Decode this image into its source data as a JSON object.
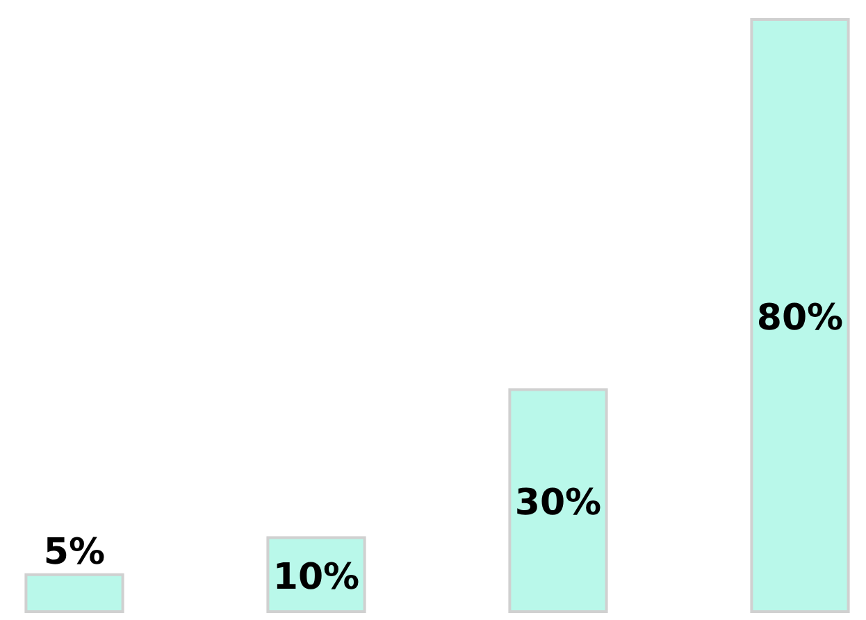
{
  "chart_data": {
    "type": "bar",
    "categories": [
      null,
      null,
      null,
      null
    ],
    "values": [
      5,
      10,
      30,
      80
    ],
    "color": "#b9f8ea",
    "value_labels": [
      "5%",
      "10%",
      "30%",
      "80%"
    ]
  }
}
